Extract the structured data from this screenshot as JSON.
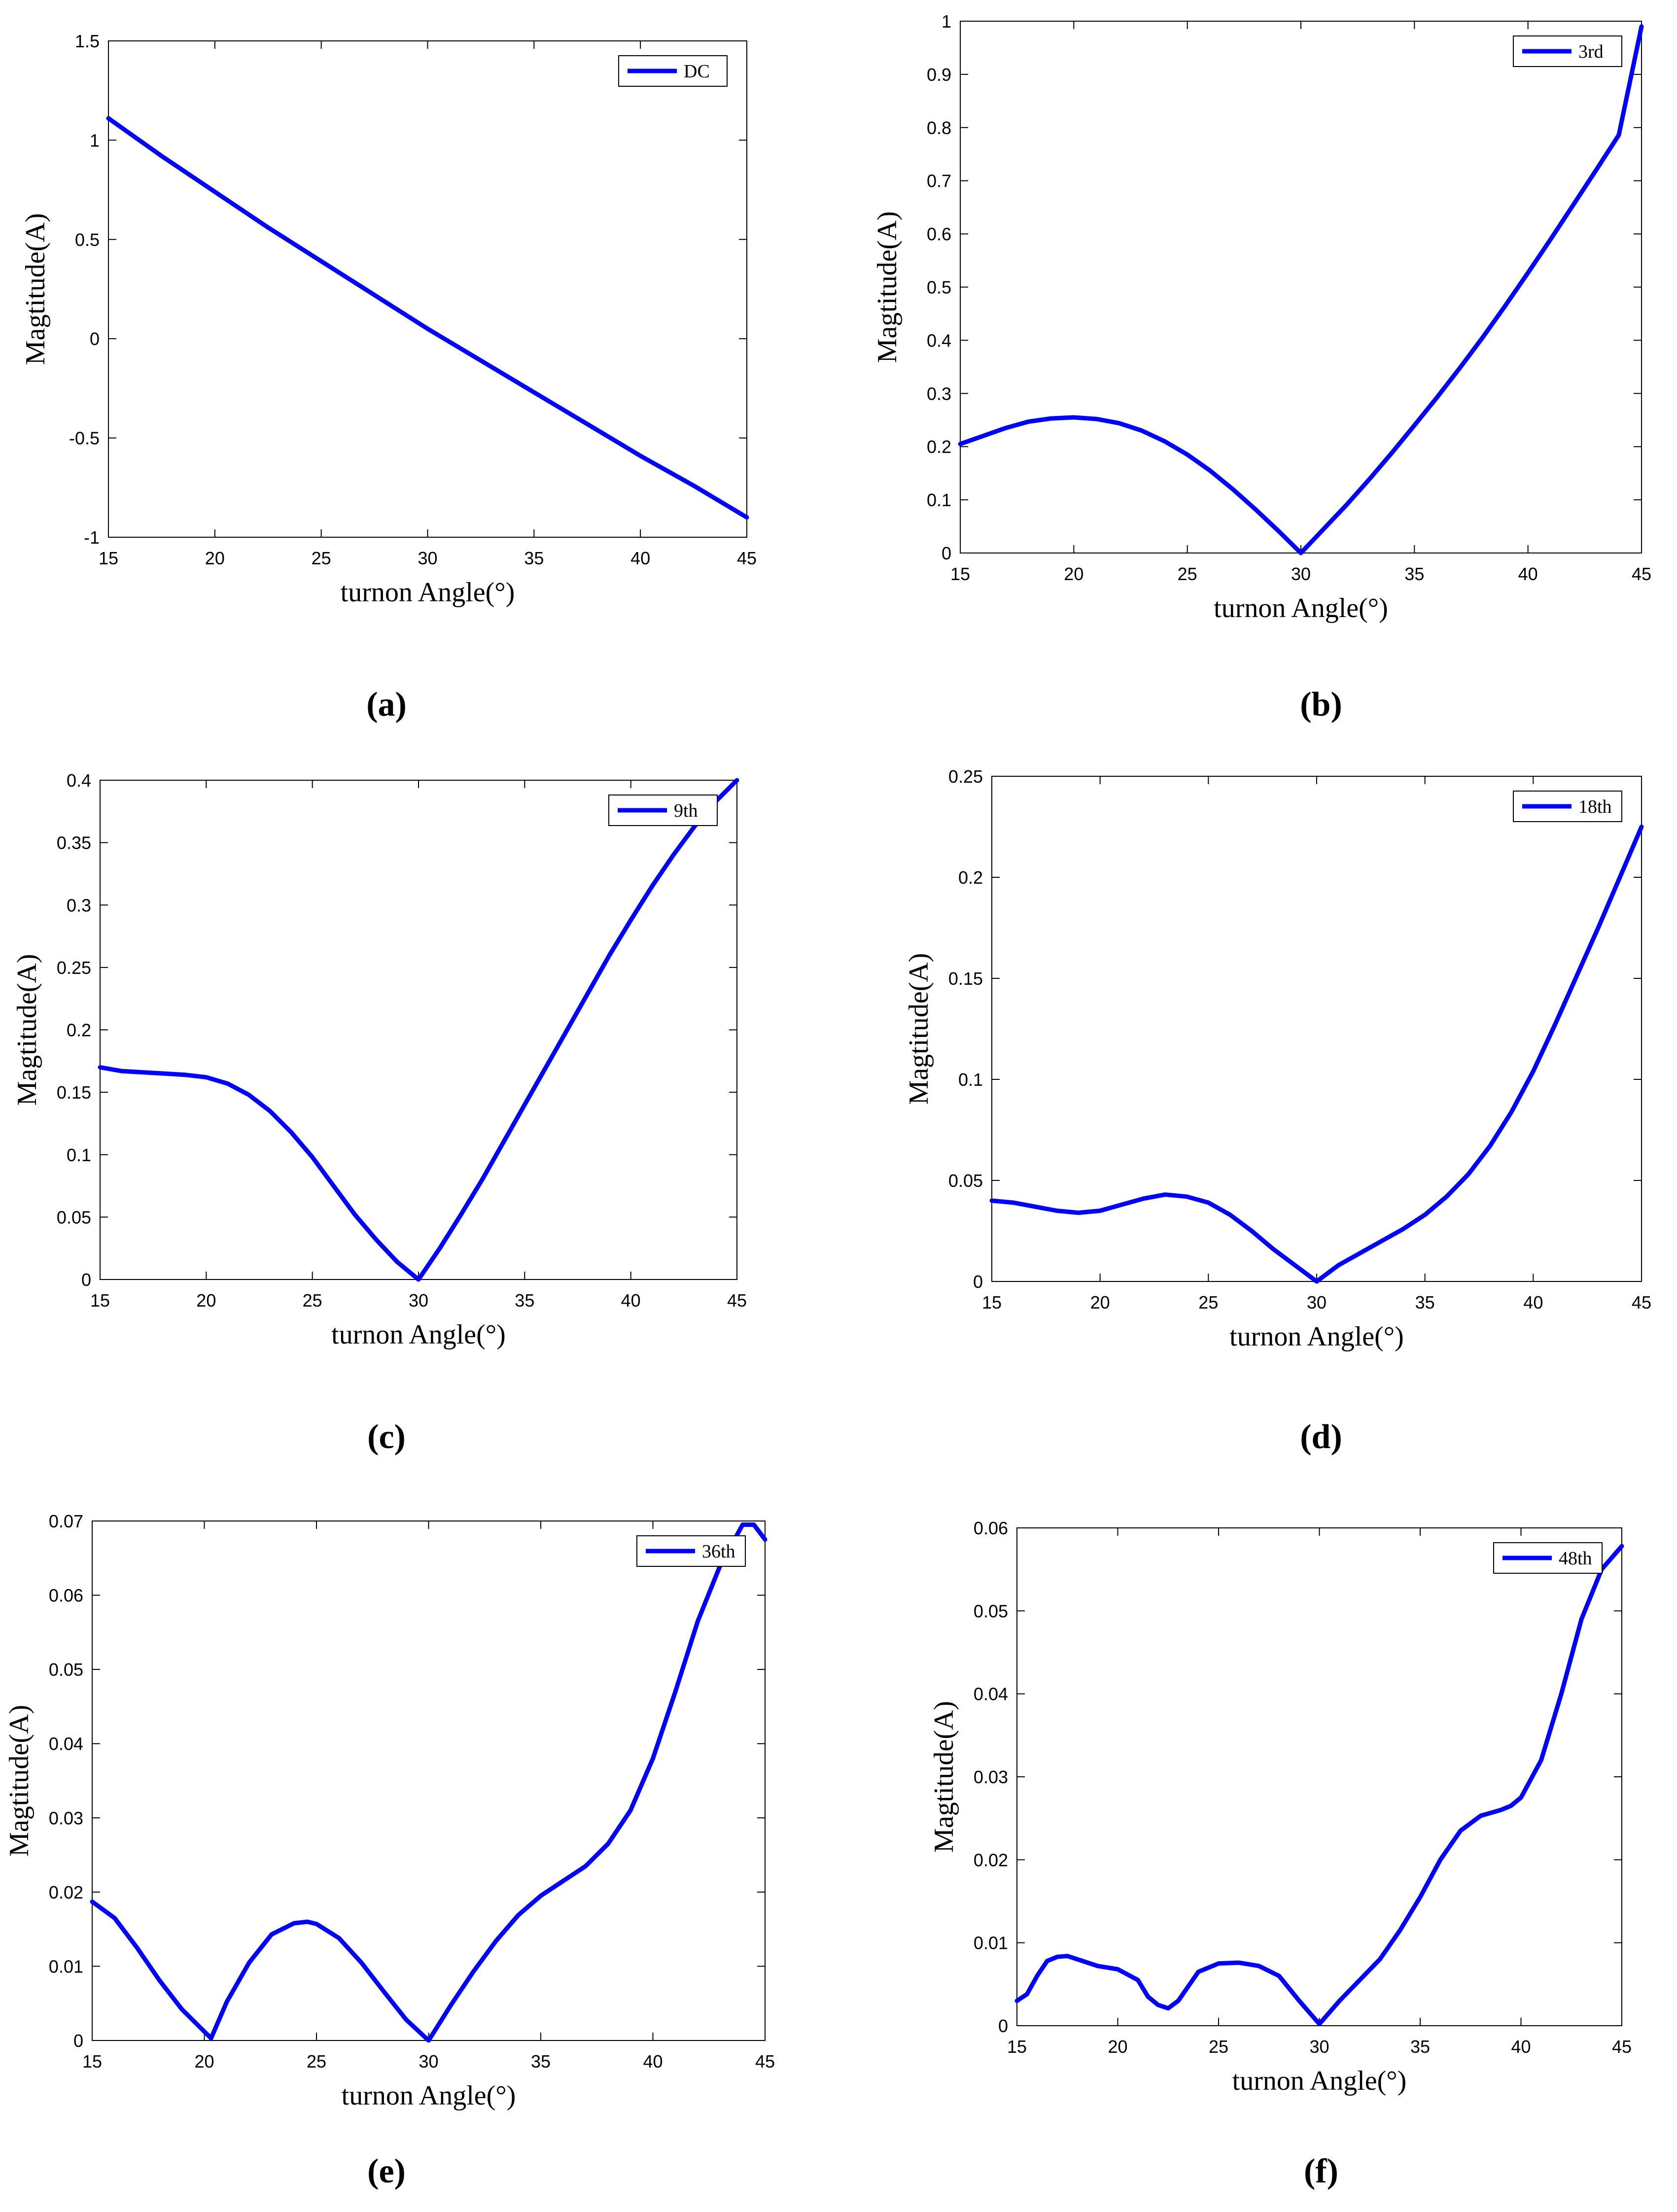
{
  "figure": {
    "panel_labels": [
      "(a)",
      "(b)",
      "(c)",
      "(d)",
      "(e)",
      "(f)"
    ]
  },
  "chart_data": [
    {
      "id": "a",
      "type": "line",
      "title": "",
      "xlabel": "turnon Angle(°)",
      "ylabel": "Magtitude(A)",
      "xlim": [
        15,
        45
      ],
      "ylim": [
        -1,
        1.5
      ],
      "xticks": [
        15,
        20,
        25,
        30,
        35,
        40,
        45
      ],
      "yticks": [
        -1,
        -0.5,
        0,
        0.5,
        1,
        1.5
      ],
      "ytick_labels": [
        "-1",
        "-0.5",
        "0",
        "0.5",
        "1",
        "1.5"
      ],
      "legend": "top-right",
      "grid": false,
      "series": [
        {
          "name": "DC",
          "color": "#0000ff",
          "x": [
            15,
            17.5,
            20,
            22.5,
            25,
            27.5,
            30,
            32.5,
            35,
            37.5,
            40,
            42.5,
            45
          ],
          "y": [
            1.11,
            0.92,
            0.74,
            0.56,
            0.39,
            0.22,
            0.05,
            -0.11,
            -0.27,
            -0.43,
            -0.59,
            -0.74,
            -0.9
          ]
        }
      ]
    },
    {
      "id": "b",
      "type": "line",
      "title": "",
      "xlabel": "turnon Angle(°)",
      "ylabel": "Magtitude(A)",
      "xlim": [
        15,
        45
      ],
      "ylim": [
        0,
        1
      ],
      "xticks": [
        15,
        20,
        25,
        30,
        35,
        40,
        45
      ],
      "yticks": [
        0,
        0.1,
        0.2,
        0.3,
        0.4,
        0.5,
        0.6,
        0.7,
        0.8,
        0.9,
        1
      ],
      "ytick_labels": [
        "0",
        "0.1",
        "0.2",
        "0.3",
        "0.4",
        "0.5",
        "0.6",
        "0.7",
        "0.8",
        "0.9",
        "1"
      ],
      "legend": "top-right",
      "grid": false,
      "series": [
        {
          "name": "3rd",
          "color": "#0000ff",
          "x": [
            15,
            16,
            17,
            18,
            19,
            20,
            21,
            22,
            23,
            24,
            25,
            26,
            27,
            28,
            29,
            30,
            31,
            32,
            33,
            34,
            35,
            36,
            37,
            38,
            39,
            40,
            41,
            42,
            43,
            44,
            45
          ],
          "y": [
            0.205,
            0.22,
            0.235,
            0.247,
            0.253,
            0.255,
            0.252,
            0.244,
            0.23,
            0.21,
            0.185,
            0.155,
            0.12,
            0.082,
            0.042,
            0.0,
            0.045,
            0.09,
            0.138,
            0.188,
            0.24,
            0.293,
            0.348,
            0.405,
            0.465,
            0.527,
            0.59,
            0.655,
            0.72,
            0.786,
            0.99
          ]
        }
      ]
    },
    {
      "id": "c",
      "type": "line",
      "title": "",
      "xlabel": "turnon Angle(°)",
      "ylabel": "Magtitude(A)",
      "xlim": [
        15,
        45
      ],
      "ylim": [
        0,
        0.4
      ],
      "xticks": [
        15,
        20,
        25,
        30,
        35,
        40,
        45
      ],
      "yticks": [
        0,
        0.05,
        0.1,
        0.15,
        0.2,
        0.25,
        0.3,
        0.35,
        0.4
      ],
      "ytick_labels": [
        "0",
        "0.05",
        "0.1",
        "0.15",
        "0.2",
        "0.25",
        "0.3",
        "0.35",
        "0.4"
      ],
      "legend": "top-right",
      "grid": false,
      "series": [
        {
          "name": "9th",
          "color": "#0000ff",
          "x": [
            15,
            16,
            17,
            18,
            19,
            20,
            21,
            22,
            23,
            24,
            25,
            26,
            27,
            28,
            29,
            30,
            31,
            32,
            33,
            34,
            35,
            36,
            37,
            38,
            39,
            40,
            41,
            42,
            43,
            44,
            45
          ],
          "y": [
            0.17,
            0.167,
            0.166,
            0.165,
            0.164,
            0.162,
            0.157,
            0.148,
            0.135,
            0.118,
            0.098,
            0.075,
            0.052,
            0.032,
            0.014,
            0.0,
            0.025,
            0.052,
            0.08,
            0.11,
            0.14,
            0.17,
            0.2,
            0.23,
            0.26,
            0.288,
            0.315,
            0.34,
            0.363,
            0.383,
            0.4
          ]
        }
      ]
    },
    {
      "id": "d",
      "type": "line",
      "title": "",
      "xlabel": "turnon Angle(°)",
      "ylabel": "Magtitude(A)",
      "xlim": [
        15,
        45
      ],
      "ylim": [
        0,
        0.25
      ],
      "xticks": [
        15,
        20,
        25,
        30,
        35,
        40,
        45
      ],
      "yticks": [
        0,
        0.05,
        0.1,
        0.15,
        0.2,
        0.25
      ],
      "ytick_labels": [
        "0",
        "0.05",
        "0.1",
        "0.15",
        "0.2",
        "0.25"
      ],
      "legend": "top-right",
      "grid": false,
      "series": [
        {
          "name": "18th",
          "color": "#0000ff",
          "x": [
            15,
            16,
            17,
            18,
            19,
            20,
            21,
            22,
            23,
            24,
            25,
            26,
            27,
            28,
            29,
            30,
            31,
            32,
            33,
            34,
            35,
            36,
            37,
            38,
            39,
            40,
            41,
            42,
            43,
            44,
            45
          ],
          "y": [
            0.04,
            0.039,
            0.037,
            0.035,
            0.034,
            0.035,
            0.038,
            0.041,
            0.043,
            0.042,
            0.039,
            0.033,
            0.025,
            0.016,
            0.008,
            0.0,
            0.008,
            0.014,
            0.02,
            0.026,
            0.033,
            0.042,
            0.053,
            0.067,
            0.084,
            0.104,
            0.127,
            0.151,
            0.175,
            0.2,
            0.225
          ]
        }
      ]
    },
    {
      "id": "e",
      "type": "line",
      "title": "",
      "xlabel": "turnon Angle(°)",
      "ylabel": "Magtitude(A)",
      "xlim": [
        15,
        45
      ],
      "ylim": [
        0,
        0.07
      ],
      "xticks": [
        15,
        20,
        25,
        30,
        35,
        40,
        45
      ],
      "yticks": [
        0,
        0.01,
        0.02,
        0.03,
        0.04,
        0.05,
        0.06,
        0.07
      ],
      "ytick_labels": [
        "0",
        "0.01",
        "0.02",
        "0.03",
        "0.04",
        "0.05",
        "0.06",
        "0.07"
      ],
      "legend": "top-right",
      "grid": false,
      "series": [
        {
          "name": "36th",
          "color": "#0000ff",
          "x": [
            15,
            16,
            17,
            18,
            19,
            20,
            20.3,
            21,
            22,
            23,
            24,
            24.6,
            25,
            26,
            27,
            28,
            29,
            30,
            31,
            32,
            33,
            34,
            35,
            36,
            37,
            38,
            39,
            40,
            41,
            42,
            43,
            44,
            44.5,
            45
          ],
          "y": [
            0.0187,
            0.0165,
            0.0125,
            0.0081,
            0.0042,
            0.0012,
            0.0003,
            0.0052,
            0.0105,
            0.0143,
            0.0158,
            0.016,
            0.0157,
            0.0138,
            0.0105,
            0.0066,
            0.0028,
            0.0,
            0.0048,
            0.0093,
            0.0134,
            0.0169,
            0.0195,
            0.0215,
            0.0235,
            0.0265,
            0.031,
            0.038,
            0.047,
            0.0565,
            0.064,
            0.0695,
            0.0695,
            0.0675
          ]
        }
      ]
    },
    {
      "id": "f",
      "type": "line",
      "title": "",
      "xlabel": "turnon Angle(°)",
      "ylabel": "Magtitude(A)",
      "xlim": [
        15,
        45
      ],
      "ylim": [
        0,
        0.06
      ],
      "xticks": [
        15,
        20,
        25,
        30,
        35,
        40,
        45
      ],
      "yticks": [
        0,
        0.01,
        0.02,
        0.03,
        0.04,
        0.05,
        0.06
      ],
      "ytick_labels": [
        "0",
        "0.01",
        "0.02",
        "0.03",
        "0.04",
        "0.05",
        "0.06"
      ],
      "legend": "top-right",
      "grid": false,
      "series": [
        {
          "name": "48th",
          "color": "#0000ff",
          "x": [
            15,
            15.5,
            16,
            16.5,
            17,
            17.5,
            18,
            19,
            20,
            21,
            21.5,
            22,
            22.5,
            23,
            24,
            25,
            26,
            27,
            28,
            29,
            30,
            31,
            32,
            33,
            34,
            35,
            36,
            37,
            38,
            39,
            39.5,
            40,
            41,
            42,
            43,
            44,
            45
          ],
          "y": [
            0.003,
            0.0038,
            0.006,
            0.0078,
            0.0083,
            0.0084,
            0.008,
            0.0072,
            0.0068,
            0.0055,
            0.0035,
            0.0025,
            0.0021,
            0.003,
            0.0065,
            0.0075,
            0.0076,
            0.0072,
            0.006,
            0.003,
            0.0002,
            0.003,
            0.0055,
            0.008,
            0.0115,
            0.0155,
            0.02,
            0.0235,
            0.0253,
            0.026,
            0.0265,
            0.0275,
            0.032,
            0.04,
            0.049,
            0.055,
            0.0578
          ]
        }
      ]
    }
  ]
}
